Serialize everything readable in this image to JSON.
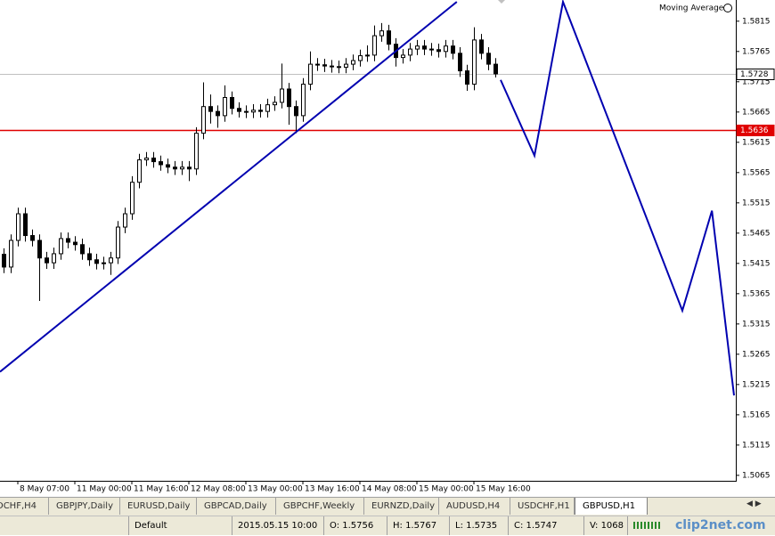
{
  "chart_data": {
    "type": "candlestick",
    "indicator": "Moving Average",
    "categories": [
      null,
      null,
      "8 May 07:00",
      null,
      null,
      null,
      null,
      null,
      null,
      null,
      "11 May 00:00",
      null,
      null,
      null,
      null,
      null,
      null,
      null,
      "11 May 16:00",
      null,
      null,
      null,
      null,
      null,
      null,
      null,
      "12 May 08:00",
      null,
      null,
      null,
      null,
      null,
      null,
      null,
      "13 May 00:00",
      null,
      null,
      null,
      null,
      null,
      null,
      null,
      "13 May 16:00",
      null,
      null,
      null,
      null,
      null,
      null,
      null,
      "14 May 08:00",
      null,
      null,
      null,
      null,
      null,
      null,
      null,
      "15 May 00:00",
      null,
      null,
      null,
      null,
      null,
      null,
      null,
      "15 May 16:00",
      null,
      null,
      null
    ],
    "open": [
      1.543,
      1.5409,
      1.5453,
      1.5497,
      1.5461,
      1.5453,
      1.5424,
      1.5416,
      1.5431,
      1.5456,
      1.545,
      1.5446,
      1.5431,
      1.5421,
      1.5415,
      1.5416,
      1.5424,
      1.5475,
      1.5497,
      1.5549,
      1.5586,
      1.5589,
      1.5583,
      1.5578,
      1.5574,
      1.5571,
      1.5574,
      1.5571,
      1.563,
      1.5674,
      1.5666,
      1.5659,
      1.5689,
      1.5671,
      1.5666,
      1.5665,
      1.5668,
      1.5666,
      1.5677,
      1.5681,
      1.5703,
      1.5674,
      1.5659,
      1.5711,
      1.5744,
      1.5743,
      1.5741,
      1.574,
      1.5739,
      1.5744,
      1.575,
      1.5758,
      1.5759,
      1.5791,
      1.5799,
      1.5777,
      1.5755,
      1.5759,
      1.5769,
      1.5774,
      1.5769,
      1.5768,
      1.5765,
      1.5774,
      1.5762,
      1.5733,
      1.5711,
      1.5784,
      1.5762,
      1.5744
    ],
    "high": [
      1.544,
      1.5463,
      1.5507,
      1.5507,
      1.5471,
      1.5463,
      1.5434,
      1.5441,
      1.5466,
      1.5466,
      1.546,
      1.5456,
      1.5441,
      1.5431,
      1.5426,
      1.5434,
      1.5485,
      1.5507,
      1.5559,
      1.5596,
      1.5599,
      1.5599,
      1.5593,
      1.5588,
      1.5584,
      1.5584,
      1.5584,
      1.564,
      1.5714,
      1.5694,
      1.5676,
      1.5709,
      1.5699,
      1.5681,
      1.5676,
      1.5678,
      1.5678,
      1.5687,
      1.5691,
      1.5745,
      1.5713,
      1.5684,
      1.5721,
      1.5765,
      1.5754,
      1.5753,
      1.5751,
      1.575,
      1.5754,
      1.576,
      1.5768,
      1.5775,
      1.5808,
      1.5812,
      1.5809,
      1.5787,
      1.5769,
      1.5779,
      1.5784,
      1.5784,
      1.5779,
      1.5778,
      1.5784,
      1.5784,
      1.5772,
      1.5743,
      1.5805,
      1.5794,
      1.5772,
      1.5754
    ],
    "low": [
      1.5399,
      1.5399,
      1.5443,
      1.5451,
      1.5443,
      1.5353,
      1.5406,
      1.5406,
      1.5421,
      1.544,
      1.5436,
      1.5421,
      1.5411,
      1.5405,
      1.5405,
      1.5396,
      1.5414,
      1.5465,
      1.5487,
      1.5539,
      1.5576,
      1.5573,
      1.5568,
      1.5564,
      1.5561,
      1.5561,
      1.5551,
      1.5561,
      1.562,
      1.5646,
      1.5639,
      1.5649,
      1.5661,
      1.5656,
      1.5655,
      1.5655,
      1.5656,
      1.5656,
      1.5667,
      1.5671,
      1.5644,
      1.563,
      1.5649,
      1.5701,
      1.5733,
      1.5731,
      1.573,
      1.5729,
      1.5729,
      1.5734,
      1.574,
      1.5748,
      1.5749,
      1.5781,
      1.5767,
      1.574,
      1.5745,
      1.5749,
      1.5759,
      1.5759,
      1.5758,
      1.5755,
      1.5755,
      1.5752,
      1.5723,
      1.57,
      1.5701,
      1.5752,
      1.5734,
      1.5722
    ],
    "close": [
      1.5409,
      1.5453,
      1.5497,
      1.5461,
      1.5453,
      1.5424,
      1.5416,
      1.5431,
      1.5456,
      1.545,
      1.5446,
      1.5431,
      1.5421,
      1.5415,
      1.5416,
      1.5424,
      1.5475,
      1.5497,
      1.5549,
      1.5586,
      1.5589,
      1.5583,
      1.5578,
      1.5574,
      1.5571,
      1.5574,
      1.5571,
      1.563,
      1.5674,
      1.5666,
      1.5659,
      1.5689,
      1.5671,
      1.5666,
      1.5665,
      1.5668,
      1.5666,
      1.5677,
      1.5681,
      1.5703,
      1.5674,
      1.5659,
      1.5711,
      1.5744,
      1.5743,
      1.5741,
      1.574,
      1.5739,
      1.5744,
      1.575,
      1.5758,
      1.5759,
      1.5791,
      1.5799,
      1.5777,
      1.5755,
      1.5759,
      1.5769,
      1.5774,
      1.5769,
      1.5768,
      1.5765,
      1.5774,
      1.5762,
      1.5733,
      1.5711,
      1.5784,
      1.5762,
      1.5744,
      1.5728
    ],
    "color": "#000000",
    "ylim": [
      1.5056,
      1.585
    ],
    "yticks": [
      1.5815,
      1.5765,
      1.5715,
      1.5665,
      1.5615,
      1.5565,
      1.5515,
      1.5465,
      1.5415,
      1.5365,
      1.5315,
      1.5265,
      1.5215,
      1.5165,
      1.5115,
      1.5065
    ],
    "bid_line": {
      "value": 1.5728,
      "color": "#c0c0c0"
    },
    "level_line": {
      "value": 1.5636,
      "color": "#e00000"
    },
    "trendline": {
      "color": "#0000b0",
      "bar": [
        -0.5,
        63.6
      ],
      "price": [
        1.5236,
        1.5847
      ]
    },
    "zigzag": {
      "color": "#0000b0",
      "bar": [
        69.75,
        74.5,
        78.5,
        95.25,
        99.4,
        102.5
      ],
      "price": [
        1.5718,
        1.5593,
        1.5847,
        1.5337,
        1.5502,
        1.5197
      ]
    }
  },
  "tabs": [
    "DCHF,H4",
    "GBPJPY,Daily",
    "EURUSD,Daily",
    "GBPCAD,Daily",
    "GBPCHF,Weekly",
    "EURNZD,Daily",
    "AUDUSD,H4",
    "USDCHF,H1",
    "GBPUSD,H1"
  ],
  "active_tab": 8,
  "status": [
    "Default",
    "2015.05.15 10:00",
    "O: 1.5756",
    "H: 1.5767",
    "L: 1.5735",
    "C: 1.5747",
    "V: 1068"
  ],
  "logo": "clip2net.com"
}
